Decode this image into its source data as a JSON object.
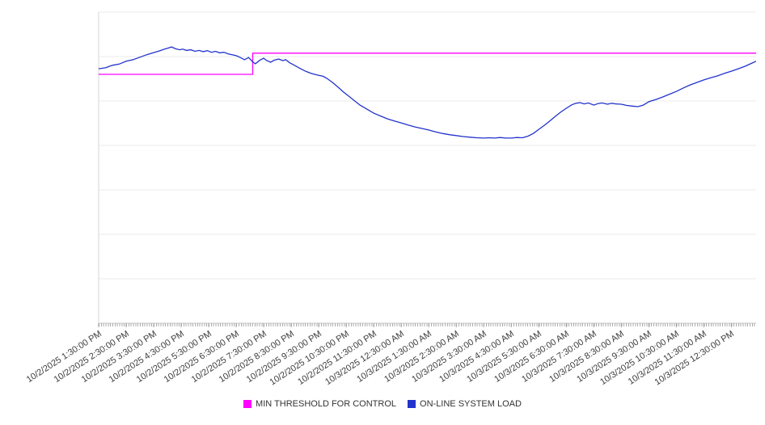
{
  "chart_data": {
    "type": "line",
    "title": "",
    "xlabel": "",
    "ylabel": "",
    "y_axis_labels_visible": false,
    "grid": "horizontal",
    "legend_position": "bottom",
    "minor_ticks_per_hour": 12,
    "x_unit": "hours after 10/2/2025 1:30:00 PM",
    "y_unit": "relative load (0-100, no y-axis labels shown)",
    "x_range_hours": [
      0,
      23.9
    ],
    "ylim": [
      0,
      100
    ],
    "categories": [
      "10/2/2025 1:30:00 PM",
      "10/2/2025 2:30:00 PM",
      "10/2/2025 3:30:00 PM",
      "10/2/2025 4:30:00 PM",
      "10/2/2025 5:30:00 PM",
      "10/2/2025 6:30:00 PM",
      "10/2/2025 7:30:00 PM",
      "10/2/2025 8:30:00 PM",
      "10/2/2025 9:30:00 PM",
      "10/2/2025 10:30:00 PM",
      "10/2/2025 11:30:00 PM",
      "10/3/2025 12:30:00 AM",
      "10/3/2025 1:30:00 AM",
      "10/3/2025 2:30:00 AM",
      "10/3/2025 3:30:00 AM",
      "10/3/2025 4:30:00 AM",
      "10/3/2025 5:30:00 AM",
      "10/3/2025 6:30:00 AM",
      "10/3/2025 7:30:00 AM",
      "10/3/2025 8:30:00 AM",
      "10/3/2025 9:30:00 AM",
      "10/3/2025 10:30:00 AM",
      "10/3/2025 11:30:00 AM",
      "10/3/2025 12:30:00 PM"
    ],
    "series": [
      {
        "name": "MIN THRESHOLD FOR CONTROL",
        "color": "#ff00ff",
        "style": "step",
        "points": [
          [
            0,
            80.0
          ],
          [
            5.6,
            80.0
          ],
          [
            5.6,
            86.8
          ],
          [
            23.9,
            86.8
          ]
        ]
      },
      {
        "name": "ON-LINE SYSTEM LOAD",
        "color": "#2233cc",
        "style": "line",
        "points": [
          [
            0,
            81.8
          ],
          [
            0.25,
            82.1
          ],
          [
            0.5,
            82.9
          ],
          [
            0.75,
            83.3
          ],
          [
            1,
            84.2
          ],
          [
            1.25,
            84.7
          ],
          [
            1.5,
            85.5
          ],
          [
            1.75,
            86.3
          ],
          [
            2,
            87.0
          ],
          [
            2.2,
            87.5
          ],
          [
            2.4,
            88.1
          ],
          [
            2.55,
            88.5
          ],
          [
            2.65,
            88.8
          ],
          [
            2.8,
            88.2
          ],
          [
            2.95,
            87.9
          ],
          [
            3.05,
            88.1
          ],
          [
            3.2,
            87.7
          ],
          [
            3.35,
            87.9
          ],
          [
            3.5,
            87.4
          ],
          [
            3.65,
            87.7
          ],
          [
            3.8,
            87.3
          ],
          [
            3.95,
            87.6
          ],
          [
            4.1,
            87.1
          ],
          [
            4.25,
            87.4
          ],
          [
            4.4,
            86.9
          ],
          [
            4.55,
            87.1
          ],
          [
            4.7,
            86.6
          ],
          [
            4.85,
            86.3
          ],
          [
            5,
            86.0
          ],
          [
            5.15,
            85.4
          ],
          [
            5.3,
            84.7
          ],
          [
            5.45,
            85.4
          ],
          [
            5.6,
            84.0
          ],
          [
            5.7,
            83.4
          ],
          [
            5.85,
            84.5
          ],
          [
            6,
            85.2
          ],
          [
            6.1,
            84.5
          ],
          [
            6.25,
            83.9
          ],
          [
            6.4,
            84.6
          ],
          [
            6.55,
            84.9
          ],
          [
            6.7,
            84.4
          ],
          [
            6.8,
            84.7
          ],
          [
            6.95,
            83.7
          ],
          [
            7.1,
            83.0
          ],
          [
            7.3,
            82.0
          ],
          [
            7.5,
            81.1
          ],
          [
            7.7,
            80.4
          ],
          [
            7.85,
            80.0
          ],
          [
            8,
            79.7
          ],
          [
            8.15,
            79.4
          ],
          [
            8.3,
            78.7
          ],
          [
            8.5,
            77.4
          ],
          [
            8.7,
            75.9
          ],
          [
            8.9,
            74.3
          ],
          [
            9.1,
            72.9
          ],
          [
            9.3,
            71.5
          ],
          [
            9.5,
            70.1
          ],
          [
            9.75,
            68.8
          ],
          [
            10,
            67.5
          ],
          [
            10.25,
            66.6
          ],
          [
            10.5,
            65.7
          ],
          [
            10.75,
            65.0
          ],
          [
            11,
            64.4
          ],
          [
            11.25,
            63.7
          ],
          [
            11.5,
            63.1
          ],
          [
            11.75,
            62.6
          ],
          [
            12,
            62.1
          ],
          [
            12.25,
            61.5
          ],
          [
            12.5,
            61.0
          ],
          [
            12.75,
            60.6
          ],
          [
            13,
            60.3
          ],
          [
            13.25,
            60.0
          ],
          [
            13.5,
            59.8
          ],
          [
            13.75,
            59.6
          ],
          [
            14,
            59.5
          ],
          [
            14.2,
            59.6
          ],
          [
            14.4,
            59.5
          ],
          [
            14.6,
            59.7
          ],
          [
            14.8,
            59.5
          ],
          [
            15,
            59.5
          ],
          [
            15.2,
            59.7
          ],
          [
            15.4,
            59.6
          ],
          [
            15.6,
            60.1
          ],
          [
            15.8,
            61.0
          ],
          [
            16,
            62.3
          ],
          [
            16.2,
            63.6
          ],
          [
            16.4,
            65.0
          ],
          [
            16.6,
            66.5
          ],
          [
            16.8,
            67.9
          ],
          [
            17,
            69.1
          ],
          [
            17.2,
            70.2
          ],
          [
            17.35,
            70.7
          ],
          [
            17.5,
            70.9
          ],
          [
            17.65,
            70.5
          ],
          [
            17.8,
            70.8
          ],
          [
            18,
            70.1
          ],
          [
            18.15,
            70.6
          ],
          [
            18.3,
            70.8
          ],
          [
            18.5,
            70.4
          ],
          [
            18.65,
            70.7
          ],
          [
            18.8,
            70.5
          ],
          [
            19,
            70.4
          ],
          [
            19.2,
            70.0
          ],
          [
            19.4,
            69.8
          ],
          [
            19.6,
            69.6
          ],
          [
            19.8,
            70.1
          ],
          [
            20,
            71.2
          ],
          [
            20.25,
            71.9
          ],
          [
            20.5,
            72.7
          ],
          [
            20.75,
            73.6
          ],
          [
            21,
            74.5
          ],
          [
            21.25,
            75.6
          ],
          [
            21.5,
            76.6
          ],
          [
            21.75,
            77.4
          ],
          [
            22,
            78.2
          ],
          [
            22.25,
            78.9
          ],
          [
            22.5,
            79.5
          ],
          [
            22.75,
            80.3
          ],
          [
            23,
            81.0
          ],
          [
            23.25,
            81.8
          ],
          [
            23.5,
            82.6
          ],
          [
            23.7,
            83.4
          ],
          [
            23.9,
            84.2
          ]
        ]
      }
    ]
  }
}
